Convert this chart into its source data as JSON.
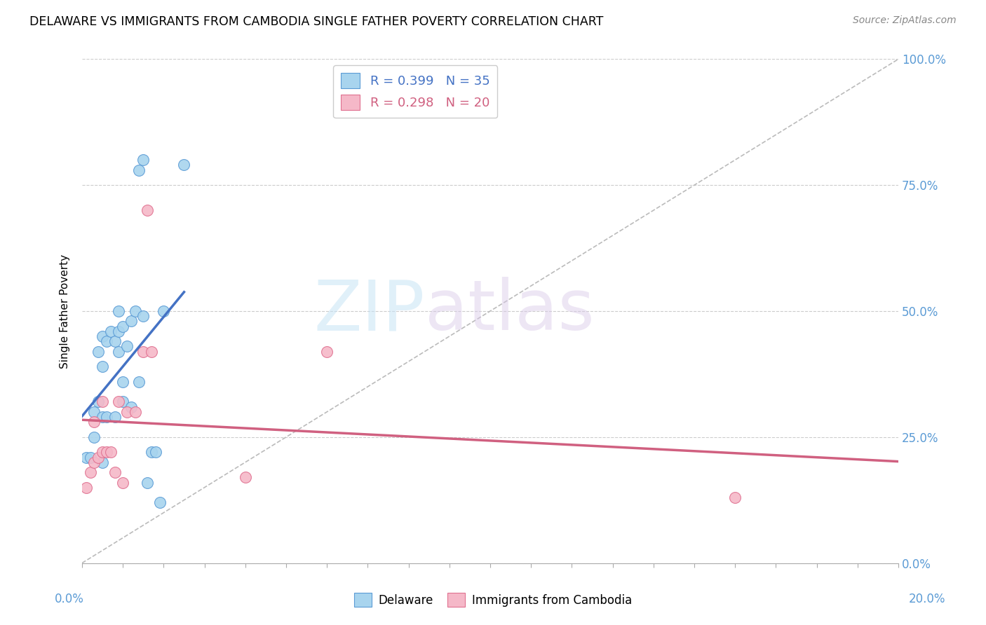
{
  "title": "DELAWARE VS IMMIGRANTS FROM CAMBODIA SINGLE FATHER POVERTY CORRELATION CHART",
  "source": "Source: ZipAtlas.com",
  "ylabel": "Single Father Poverty",
  "ytick_labels": [
    "0.0%",
    "25.0%",
    "50.0%",
    "75.0%",
    "100.0%"
  ],
  "ytick_values": [
    0.0,
    0.25,
    0.5,
    0.75,
    1.0
  ],
  "xlim": [
    0,
    0.2
  ],
  "ylim": [
    0.0,
    1.0
  ],
  "legend_r1": "R = 0.399",
  "legend_n1": "N = 35",
  "legend_r2": "R = 0.298",
  "legend_n2": "N = 20",
  "color_delaware_fill": "#a8d4ee",
  "color_cambodia_fill": "#f5b8c8",
  "color_delaware_edge": "#5b9bd5",
  "color_cambodia_edge": "#e07090",
  "color_delaware_line": "#4472c4",
  "color_cambodia_line": "#d06080",
  "color_diagonal": "#cccccc",
  "watermark_zip": "ZIP",
  "watermark_atlas": "atlas",
  "delaware_x": [
    0.001,
    0.002,
    0.003,
    0.003,
    0.004,
    0.004,
    0.005,
    0.005,
    0.005,
    0.005,
    0.006,
    0.006,
    0.007,
    0.008,
    0.008,
    0.009,
    0.009,
    0.009,
    0.01,
    0.01,
    0.01,
    0.011,
    0.012,
    0.012,
    0.013,
    0.014,
    0.014,
    0.015,
    0.015,
    0.016,
    0.017,
    0.018,
    0.019,
    0.02,
    0.025
  ],
  "delaware_y": [
    0.21,
    0.21,
    0.3,
    0.25,
    0.42,
    0.32,
    0.45,
    0.39,
    0.29,
    0.2,
    0.44,
    0.29,
    0.46,
    0.44,
    0.29,
    0.5,
    0.46,
    0.42,
    0.32,
    0.47,
    0.36,
    0.43,
    0.48,
    0.31,
    0.5,
    0.78,
    0.36,
    0.8,
    0.49,
    0.16,
    0.22,
    0.22,
    0.12,
    0.5,
    0.79
  ],
  "cambodia_x": [
    0.001,
    0.002,
    0.003,
    0.003,
    0.004,
    0.005,
    0.005,
    0.006,
    0.007,
    0.008,
    0.009,
    0.01,
    0.011,
    0.013,
    0.015,
    0.016,
    0.017,
    0.04,
    0.06,
    0.16
  ],
  "cambodia_y": [
    0.15,
    0.18,
    0.2,
    0.28,
    0.21,
    0.32,
    0.22,
    0.22,
    0.22,
    0.18,
    0.32,
    0.16,
    0.3,
    0.3,
    0.42,
    0.7,
    0.42,
    0.17,
    0.42,
    0.13
  ],
  "delaware_trend_x0": 0.0,
  "delaware_trend_x1": 0.025,
  "cambodia_trend_x0": 0.0,
  "cambodia_trend_x1": 0.2
}
